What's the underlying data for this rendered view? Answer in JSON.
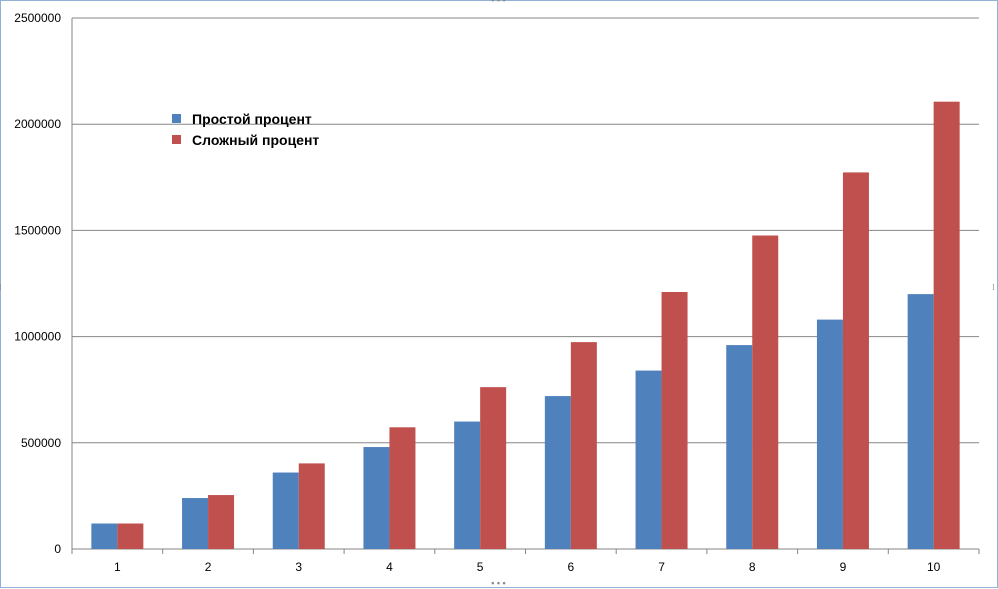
{
  "chart_data": {
    "type": "bar",
    "categories": [
      "1",
      "2",
      "3",
      "4",
      "5",
      "6",
      "7",
      "8",
      "9",
      "10"
    ],
    "series": [
      {
        "name": "Простой процент",
        "color": "#4f81bd",
        "values": [
          120000,
          240000,
          360000,
          480000,
          600000,
          720000,
          840000,
          960000,
          1080000,
          1200000
        ]
      },
      {
        "name": "Сложный процент",
        "color": "#c0504d",
        "values": [
          120000,
          254000,
          403000,
          573000,
          762000,
          974000,
          1210000,
          1476000,
          1773000,
          2106000
        ]
      }
    ],
    "yticks": [
      "0",
      "500000",
      "1000000",
      "1500000",
      "2000000",
      "2500000"
    ],
    "ylim": [
      0,
      2500000
    ],
    "grid": true,
    "legend_position": "top-left"
  }
}
